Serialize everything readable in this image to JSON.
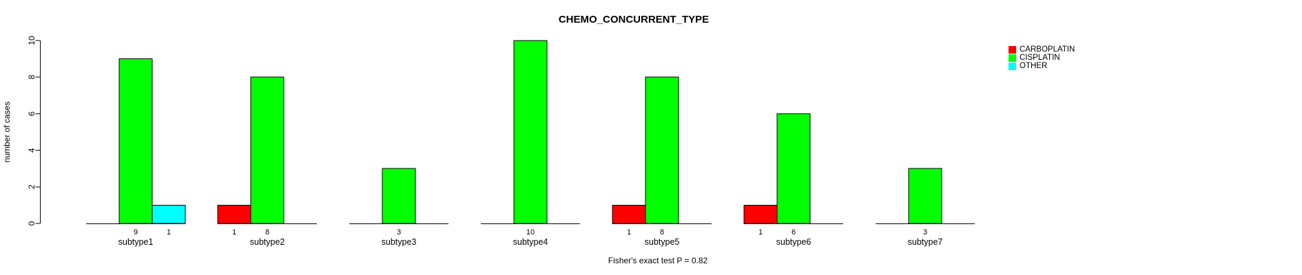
{
  "chart_data": {
    "type": "bar",
    "title": "CHEMO_CONCURRENT_TYPE",
    "ylabel": "number of cases",
    "xlabel": "",
    "footnote": "Fisher's exact test P = 0.82",
    "categories": [
      "subtype1",
      "subtype2",
      "subtype3",
      "subtype4",
      "subtype5",
      "subtype6",
      "subtype7"
    ],
    "series": [
      {
        "name": "CARBOPLATIN",
        "color": "#FF0000",
        "values": [
          0,
          1,
          0,
          0,
          1,
          1,
          0
        ]
      },
      {
        "name": "CISPLATIN",
        "color": "#00FF00",
        "values": [
          9,
          8,
          3,
          10,
          8,
          6,
          3
        ]
      },
      {
        "name": "OTHER",
        "color": "#00FFFF",
        "values": [
          1,
          0,
          0,
          0,
          0,
          0,
          0
        ]
      }
    ],
    "bar_value_labels_shown": true,
    "yticks": [
      0,
      2,
      4,
      6,
      8,
      10
    ],
    "ylim": [
      0,
      10
    ],
    "grid": false,
    "legend_position": "right",
    "axis_color": "#000000",
    "bar_border_color": "#000000"
  }
}
